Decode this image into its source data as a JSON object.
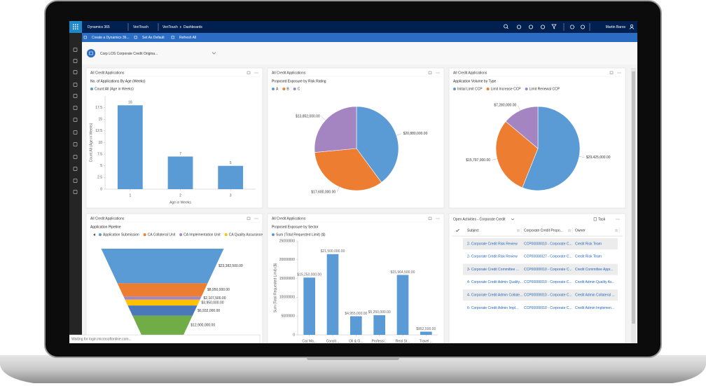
{
  "header": {
    "app": "Dynamics 365",
    "org": "VeriTouch",
    "breadcrumb": [
      "VeriTouch",
      "Dashboards"
    ],
    "user": "Martin Baros"
  },
  "toolbar": [
    "Create a Dynamics 36...",
    "Set As Default",
    "Refresh All"
  ],
  "dashboard_title": "Corp LOS Corporate Credit Origina...",
  "status": "Waiting for login.microsoftonline.com...",
  "chart_data": [
    {
      "type": "bar",
      "panel": "All Credit Applications",
      "title": "No. of Applications By Age (Weeks)",
      "categories": [
        "1",
        "2",
        "3"
      ],
      "series": [
        {
          "name": "Count:All (Age in Weeks)",
          "color": "#5b9bd5",
          "values": [
            18,
            7,
            5
          ]
        }
      ],
      "y_label": "Count:All (Age in Weeks)",
      "x_label": "Age in Weeks",
      "ylim": [
        0,
        20
      ],
      "yticks": [
        0,
        2.5,
        5,
        7.5,
        10,
        12.5,
        15,
        17.5
      ]
    },
    {
      "type": "pie",
      "panel": "All Credit Applications",
      "title": "Proposed Exposure by Risk Rating",
      "categories": [
        "A",
        "B",
        "C"
      ],
      "colors": [
        "#5b9bd5",
        "#ed7d31",
        "#a584c2"
      ],
      "values": [
        20880000,
        17600000,
        13852000
      ],
      "value_labels": [
        "$20,880,000.00",
        "$17,600,000.00",
        "$13,852,000.00"
      ]
    },
    {
      "type": "pie",
      "panel": "All Credit Applications",
      "title": "Application Volume by Type",
      "categories": [
        "Initial Limit CCP",
        "Limit Increase CCP",
        "Limit Renewal CCP"
      ],
      "colors": [
        "#5b9bd5",
        "#ed7d31",
        "#a584c2"
      ],
      "values": [
        29425000,
        15797000,
        7280000
      ],
      "value_labels": [
        "$29,425,000.00",
        "$15,797,000.00",
        "$7,280,000.00"
      ]
    },
    {
      "type": "funnel",
      "panel": "All Credit Applications",
      "title": "Application Pipeline",
      "categories": [
        "Application Submission",
        "CA Collateral Unit",
        "CA Implementation Unit",
        "CA Quality Assurance",
        null,
        null
      ],
      "colors": [
        "#5b9bd5",
        "#ed7d31",
        "#a584c2",
        "#ffc000",
        "#4a78b8",
        "#70ad47"
      ],
      "values": [
        23382500,
        8950000,
        2107500,
        3950000,
        6932000,
        12900000
      ],
      "value_labels": [
        "$23,382,500.00",
        "$8,950,000.00",
        "$2,107,500.00",
        "$3,950,000.00",
        "$6,932,000.00",
        "$12,900,000.00"
      ]
    },
    {
      "type": "bar",
      "panel": "All Credit Applications",
      "title": "Proposed Exposure by Sector",
      "categories": [
        "Car Ma...",
        "Constr...",
        "Oil & G...",
        "Professi...",
        "Real St...",
        "Travel ..."
      ],
      "series": [
        {
          "name": "Sum (Total Requested Limit) ($)",
          "color": "#5b9bd5",
          "values": [
            15250000,
            21500000,
            4955000,
            5250000,
            15964500,
            852500
          ],
          "value_labels": [
            "$15,250,000.00",
            "$21,500,000.00",
            "$4,955,000.00",
            "$5,250,000.00",
            "$15,964,500.00",
            "$852,500.00"
          ]
        }
      ],
      "y_label": "Sum (Total Requested Limit) ($)",
      "ylim": [
        0,
        25000000
      ],
      "yticks": [
        0,
        5000000,
        10000000,
        15000000,
        20000000,
        25000000
      ]
    }
  ],
  "activities": {
    "title": "Open Activities - Corporate Credit",
    "new": "Task",
    "columns": [
      "Subject",
      "Corporate Credit Propo...",
      "Owner"
    ],
    "rows": [
      [
        "2- Corporate Credit Risk Review",
        "CCP00000010 - Corporate C...",
        "Credit Risk Team"
      ],
      [
        "2- Corporate Credit Risk Review",
        "CCP00000027 - Corporate C...",
        "Credit Risk Team"
      ],
      [
        "3- Corporate Credit Committee ...",
        "CCP00000010 - Corporate C...",
        "Credit Committee Appr..."
      ],
      [
        "4- Corporate Credit Admin Quality...",
        "CCP00000010 - Corporate C...",
        "Credit Admin Quality As..."
      ],
      [
        "4- Corporate Credit Admin Collate...",
        "CCP00000010 - Corporate C...",
        "Credit Admin Collateral ..."
      ],
      [
        "6- Corporate Credit Admin Impl...",
        "CCP00000010 - Corporate C...",
        "Credit Admin Implemen..."
      ]
    ]
  }
}
